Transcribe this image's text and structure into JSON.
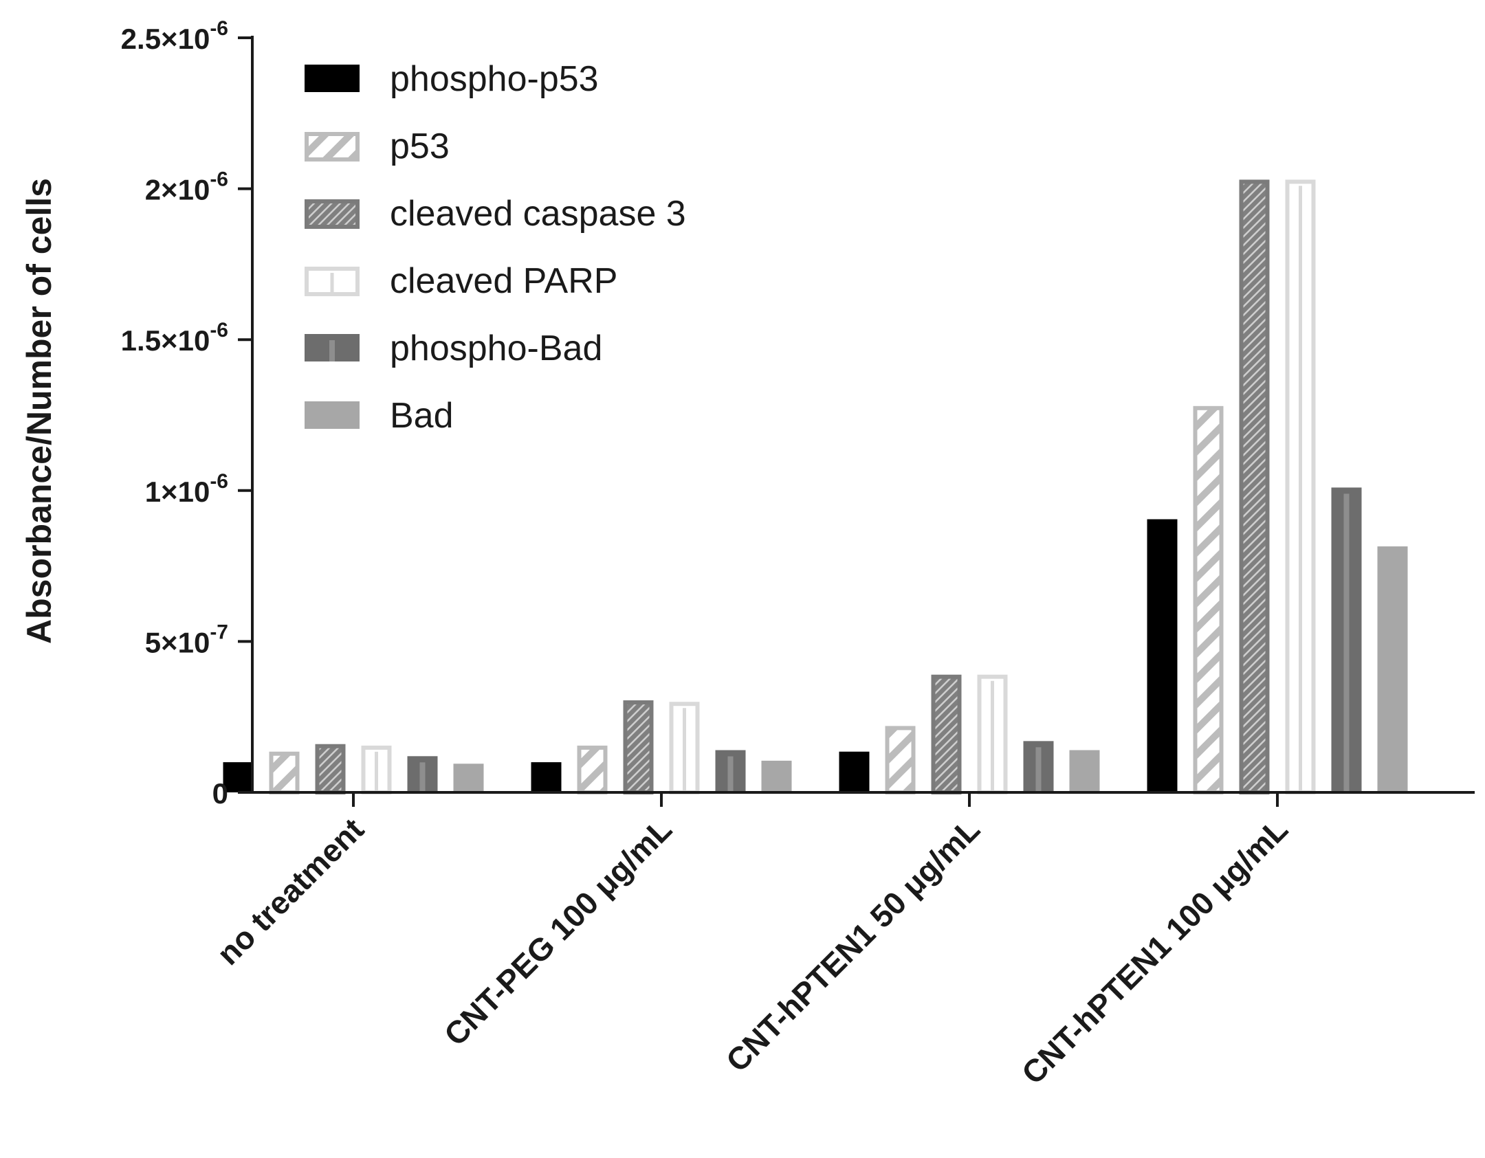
{
  "chart_data": {
    "type": "bar",
    "title": "",
    "xlabel": "",
    "ylabel": "Absorbance/Number of cells",
    "ylim": [
      0,
      2.5e-06
    ],
    "yticks": [
      {
        "value": 0,
        "mantissa": "0",
        "exponent": ""
      },
      {
        "value": 5e-07,
        "mantissa": "5×10",
        "exponent": "-7"
      },
      {
        "value": 1e-06,
        "mantissa": "1×10",
        "exponent": "-6"
      },
      {
        "value": 1.5e-06,
        "mantissa": "1.5×10",
        "exponent": "-6"
      },
      {
        "value": 2e-06,
        "mantissa": "2×10",
        "exponent": "-6"
      },
      {
        "value": 2.5e-06,
        "mantissa": "2.5×10",
        "exponent": "-6"
      }
    ],
    "categories": [
      "no treatment",
      "CNT-PEG 100 μg/mL",
      "CNT-hPTEN1 50 μg/mL",
      "CNT-hPTEN1 100 μg/mL"
    ],
    "legend_position": "top-left",
    "series": [
      {
        "name": "phospho-p53",
        "pattern": "solid-black",
        "values": [
          1e-07,
          1e-07,
          1.35e-07,
          9.05e-07
        ]
      },
      {
        "name": "p53",
        "pattern": "hatch-light",
        "values": [
          1.35e-07,
          1.55e-07,
          2.2e-07,
          1.28e-06
        ]
      },
      {
        "name": "cleaved caspase 3",
        "pattern": "hatch-dark",
        "values": [
          1.6e-07,
          3.05e-07,
          3.9e-07,
          2.03e-06
        ]
      },
      {
        "name": "cleaved PARP",
        "pattern": "outline-light",
        "values": [
          1.55e-07,
          3e-07,
          3.9e-07,
          2.03e-06
        ]
      },
      {
        "name": "phospho-Bad",
        "pattern": "dark-striped",
        "values": [
          1.2e-07,
          1.4e-07,
          1.7e-07,
          1.01e-06
        ]
      },
      {
        "name": "Bad",
        "pattern": "solid-gray",
        "values": [
          9.5e-08,
          1.05e-07,
          1.4e-07,
          8.15e-07
        ]
      }
    ]
  }
}
